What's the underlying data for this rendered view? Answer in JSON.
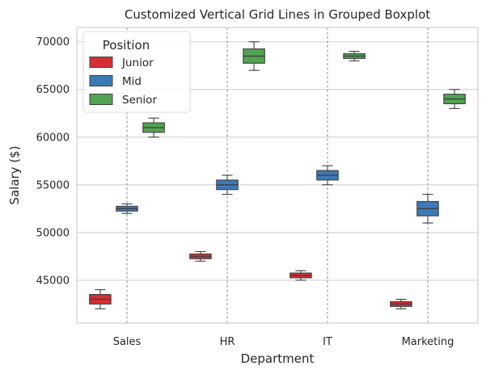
{
  "chart_data": {
    "type": "boxplot",
    "title": "Customized Vertical Grid Lines in Grouped Boxplot",
    "xlabel": "Department",
    "ylabel": "Salary ($)",
    "categories": [
      "Sales",
      "HR",
      "IT",
      "Marketing"
    ],
    "ylim": [
      40500,
      71500
    ],
    "yticks": [
      45000,
      50000,
      55000,
      60000,
      65000,
      70000
    ],
    "grid": {
      "horizontal": "solid light gray",
      "vertical": "dashed gray at category centers"
    },
    "legend": {
      "title": "Position",
      "placement": "top-left"
    },
    "series": [
      {
        "name": "Junior",
        "color": "#d62f33",
        "boxes": [
          {
            "min": 42000,
            "q1": 42500,
            "median": 43000,
            "q3": 43500,
            "max": 44000
          },
          {
            "min": 47000,
            "q1": 47250,
            "median": 47500,
            "q3": 47750,
            "max": 48000
          },
          {
            "min": 45000,
            "q1": 45250,
            "median": 45500,
            "q3": 45750,
            "max": 46000
          },
          {
            "min": 42000,
            "q1": 42250,
            "median": 42500,
            "q3": 42750,
            "max": 43000
          }
        ]
      },
      {
        "name": "Mid",
        "color": "#3d7ab5",
        "boxes": [
          {
            "min": 52000,
            "q1": 52250,
            "median": 52500,
            "q3": 52750,
            "max": 53000
          },
          {
            "min": 54000,
            "q1": 54500,
            "median": 55000,
            "q3": 55500,
            "max": 56000
          },
          {
            "min": 55000,
            "q1": 55500,
            "median": 56000,
            "q3": 56500,
            "max": 57000
          },
          {
            "min": 51000,
            "q1": 51750,
            "median": 52500,
            "q3": 53250,
            "max": 54000
          }
        ]
      },
      {
        "name": "Senior",
        "color": "#52a352",
        "boxes": [
          {
            "min": 60000,
            "q1": 60500,
            "median": 61000,
            "q3": 61500,
            "max": 62000
          },
          {
            "min": 67000,
            "q1": 67750,
            "median": 68500,
            "q3": 69250,
            "max": 70000
          },
          {
            "min": 68000,
            "q1": 68250,
            "median": 68500,
            "q3": 68750,
            "max": 69000
          },
          {
            "min": 63000,
            "q1": 63500,
            "median": 64000,
            "q3": 64500,
            "max": 65000
          }
        ]
      }
    ]
  }
}
